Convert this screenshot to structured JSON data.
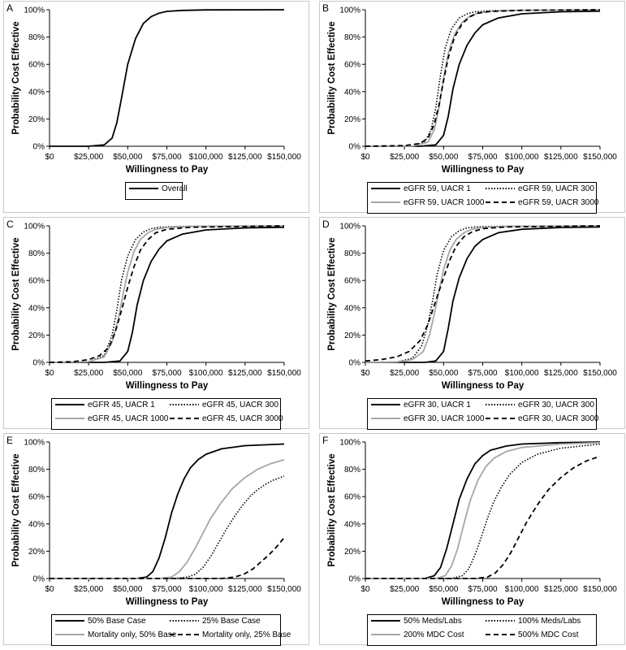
{
  "colors": {
    "black": "#000000",
    "gray": "#a6a6a6"
  },
  "chart_data": [
    {
      "panel": "A",
      "type": "line",
      "xlabel": "Willingness to Pay",
      "ylabel": "Probability Cost Effective",
      "xlim": [
        0,
        150000
      ],
      "ylim": [
        0,
        100
      ],
      "x_ticks": [
        "$0",
        "$25,000",
        "$50,000",
        "$75,000",
        "$100,000",
        "$125,000",
        "$150,000"
      ],
      "y_ticks": [
        "0%",
        "20%",
        "40%",
        "60%",
        "80%",
        "100%"
      ],
      "legend": [
        [
          "Overall"
        ]
      ],
      "series": [
        {
          "name": "Overall",
          "style": "solid",
          "color": "black",
          "x": [
            0,
            25000,
            35000,
            40000,
            43000,
            46000,
            50000,
            55000,
            60000,
            65000,
            70000,
            75000,
            85000,
            100000,
            150000
          ],
          "y": [
            0,
            0,
            1,
            6,
            17,
            35,
            60,
            79,
            90,
            95,
            97.5,
            98.8,
            99.5,
            99.9,
            100
          ]
        }
      ]
    },
    {
      "panel": "B",
      "type": "line",
      "xlabel": "Willingness to Pay",
      "ylabel": "Probability Cost Effective",
      "xlim": [
        0,
        150000
      ],
      "ylim": [
        0,
        100
      ],
      "x_ticks": [
        "$0",
        "$25,000",
        "$50,000",
        "$75,000",
        "$100,000",
        "$125,000",
        "$150,000"
      ],
      "y_ticks": [
        "0%",
        "20%",
        "40%",
        "60%",
        "80%",
        "100%"
      ],
      "legend": [
        [
          "eGFR 59, UACR 1",
          "eGFR 59, UACR 300"
        ],
        [
          "eGFR 59, UACR 1000",
          "eGFR 59, UACR 3000"
        ]
      ],
      "series": [
        {
          "name": "eGFR 59, UACR 1",
          "style": "solid",
          "color": "black",
          "x": [
            0,
            35000,
            45000,
            50000,
            53000,
            56000,
            60000,
            65000,
            70000,
            75000,
            85000,
            100000,
            125000,
            150000
          ],
          "y": [
            0,
            0,
            1,
            8,
            22,
            42,
            60,
            74,
            83,
            89,
            94,
            97,
            98.5,
            99
          ]
        },
        {
          "name": "eGFR 59, UACR 300",
          "style": "dotted",
          "color": "black",
          "x": [
            0,
            30000,
            38000,
            42000,
            45000,
            48000,
            51000,
            55000,
            60000,
            65000,
            70000,
            80000,
            100000,
            150000
          ],
          "y": [
            0,
            0,
            3,
            12,
            28,
            52,
            72,
            86,
            94,
            97,
            98.5,
            99.3,
            99.7,
            100
          ]
        },
        {
          "name": "eGFR 59, UACR 1000",
          "style": "solid",
          "color": "gray",
          "x": [
            0,
            30000,
            40000,
            44000,
            47000,
            50000,
            53000,
            57000,
            62000,
            67000,
            72000,
            80000,
            100000,
            150000
          ],
          "y": [
            0,
            0,
            3,
            12,
            28,
            50,
            68,
            82,
            91,
            95.5,
            97.5,
            98.8,
            99.5,
            100
          ]
        },
        {
          "name": "eGFR 59, UACR 3000",
          "style": "dashed",
          "color": "black",
          "x": [
            0,
            25000,
            35000,
            40000,
            44000,
            47000,
            50000,
            53000,
            57000,
            62000,
            67000,
            72000,
            80000,
            100000,
            150000
          ],
          "y": [
            0,
            0.5,
            2,
            6,
            16,
            30,
            48,
            65,
            80,
            90,
            95,
            97.5,
            98.8,
            99.6,
            100
          ]
        }
      ]
    },
    {
      "panel": "C",
      "type": "line",
      "xlabel": "Willingness to Pay",
      "ylabel": "Probability Cost Effective",
      "xlim": [
        0,
        150000
      ],
      "ylim": [
        0,
        100
      ],
      "x_ticks": [
        "$0",
        "$25,000",
        "$50,000",
        "$75,000",
        "$100,000",
        "$125,000",
        "$150,000"
      ],
      "y_ticks": [
        "0%",
        "20%",
        "40%",
        "60%",
        "80%",
        "100%"
      ],
      "legend": [
        [
          "eGFR 45, UACR 1",
          "eGFR 45, UACR 300"
        ],
        [
          "eGFR 45, UACR 1000",
          "eGFR 45, UACR 3000"
        ]
      ],
      "series": [
        {
          "name": "eGFR 45, UACR 1",
          "style": "solid",
          "color": "black",
          "x": [
            0,
            35000,
            45000,
            50000,
            53000,
            56000,
            60000,
            65000,
            70000,
            75000,
            85000,
            100000,
            125000,
            150000
          ],
          "y": [
            0,
            0,
            1,
            8,
            22,
            42,
            60,
            74,
            83,
            89,
            94,
            97,
            98.5,
            99
          ]
        },
        {
          "name": "eGFR 45, UACR 300",
          "style": "dotted",
          "color": "black",
          "x": [
            0,
            25000,
            35000,
            40000,
            43000,
            46000,
            50000,
            55000,
            60000,
            65000,
            70000,
            80000,
            100000,
            150000
          ],
          "y": [
            0,
            0.5,
            5,
            20,
            38,
            60,
            78,
            90,
            95.5,
            98,
            99,
            99.5,
            99.8,
            100
          ]
        },
        {
          "name": "eGFR 45, UACR 1000",
          "style": "solid",
          "color": "gray",
          "x": [
            0,
            25000,
            35000,
            40000,
            44000,
            47000,
            50000,
            54000,
            58000,
            63000,
            68000,
            75000,
            90000,
            150000
          ],
          "y": [
            0,
            0.5,
            4,
            15,
            32,
            50,
            66,
            81,
            90,
            95,
            97.5,
            98.8,
            99.5,
            100
          ]
        },
        {
          "name": "eGFR 45, UACR 3000",
          "style": "dashed",
          "color": "black",
          "x": [
            0,
            15000,
            25000,
            32000,
            38000,
            42000,
            46000,
            50000,
            54000,
            58000,
            63000,
            68000,
            75000,
            90000,
            150000
          ],
          "y": [
            0,
            0.5,
            2,
            5,
            11,
            22,
            38,
            55,
            70,
            82,
            90,
            95,
            97.5,
            99,
            100
          ]
        }
      ]
    },
    {
      "panel": "D",
      "type": "line",
      "xlabel": "Willingness to Pay",
      "ylabel": "Probability Cost Effective",
      "xlim": [
        0,
        150000
      ],
      "ylim": [
        0,
        100
      ],
      "x_ticks": [
        "$0",
        "$25,000",
        "$50,000",
        "$75,000",
        "$100,000",
        "$125,000",
        "$150,000"
      ],
      "y_ticks": [
        "0%",
        "20%",
        "40%",
        "60%",
        "80%",
        "100%"
      ],
      "legend": [
        [
          "eGFR 30, UACR 1",
          "eGFR 30, UACR 300"
        ],
        [
          "eGFR 30, UACR 1000",
          "eGFR 30, UACR 3000"
        ]
      ],
      "series": [
        {
          "name": "eGFR 30, UACR 1",
          "style": "solid",
          "color": "black",
          "x": [
            0,
            38000,
            45000,
            50000,
            53000,
            56000,
            60000,
            65000,
            70000,
            75000,
            85000,
            100000,
            125000,
            150000
          ],
          "y": [
            0,
            0,
            1,
            8,
            25,
            45,
            62,
            76,
            85,
            90,
            95,
            97.5,
            98.8,
            99.2
          ]
        },
        {
          "name": "eGFR 30, UACR 300",
          "style": "dotted",
          "color": "black",
          "x": [
            0,
            20000,
            30000,
            36000,
            40000,
            43000,
            46000,
            50000,
            55000,
            60000,
            65000,
            70000,
            80000,
            100000,
            150000
          ],
          "y": [
            0,
            0.3,
            3,
            12,
            28,
            45,
            65,
            82,
            92,
            96.5,
            98.5,
            99.2,
            99.6,
            99.8,
            100
          ]
        },
        {
          "name": "eGFR 30, UACR 1000",
          "style": "solid",
          "color": "gray",
          "x": [
            0,
            20000,
            30000,
            37000,
            41000,
            44000,
            47000,
            50000,
            54000,
            58000,
            63000,
            68000,
            75000,
            90000,
            150000
          ],
          "y": [
            0,
            0.3,
            2,
            8,
            20,
            35,
            52,
            68,
            82,
            90,
            95,
            97.5,
            98.8,
            99.5,
            100
          ]
        },
        {
          "name": "eGFR 30, UACR 3000",
          "style": "dashed",
          "color": "black",
          "x": [
            0,
            10000,
            20000,
            28000,
            35000,
            40000,
            45000,
            50000,
            54000,
            58000,
            63000,
            68000,
            75000,
            90000,
            150000
          ],
          "y": [
            1,
            2,
            4,
            8,
            16,
            28,
            45,
            62,
            75,
            85,
            92,
            95.5,
            98,
            99.2,
            100
          ]
        }
      ]
    },
    {
      "panel": "E",
      "type": "line",
      "xlabel": "Willingness to Pay",
      "ylabel": "Probability Cost Effective",
      "xlim": [
        0,
        150000
      ],
      "ylim": [
        0,
        100
      ],
      "x_ticks": [
        "$0",
        "$25,000",
        "$50,000",
        "$75,000",
        "$100,000",
        "$125,000",
        "$150,000"
      ],
      "y_ticks": [
        "0%",
        "20%",
        "40%",
        "60%",
        "80%",
        "100%"
      ],
      "legend": [
        [
          "50% Base Case",
          "25% Base Case"
        ],
        [
          "Mortality only, 50% Base",
          "Mortality only, 25% Base"
        ]
      ],
      "series": [
        {
          "name": "50% Base Case",
          "style": "solid",
          "color": "black",
          "x": [
            0,
            55000,
            62000,
            66000,
            70000,
            74000,
            78000,
            82000,
            86000,
            90000,
            95000,
            100000,
            110000,
            125000,
            150000
          ],
          "y": [
            0,
            0,
            1,
            5,
            15,
            30,
            48,
            62,
            73,
            81,
            87,
            91,
            95,
            97.3,
            98.5
          ]
        },
        {
          "name": "25% Base Case",
          "style": "dotted",
          "color": "black",
          "x": [
            0,
            80000,
            88000,
            93000,
            98000,
            103000,
            108000,
            113000,
            118000,
            123000,
            128000,
            133000,
            138000,
            143000,
            150000
          ],
          "y": [
            0,
            0,
            1,
            3,
            8,
            16,
            26,
            36,
            45,
            53,
            60,
            65,
            69,
            72,
            75
          ]
        },
        {
          "name": "Mortality only, 50% Base",
          "style": "solid",
          "color": "gray",
          "x": [
            0,
            70000,
            78000,
            83000,
            88000,
            93000,
            98000,
            103000,
            110000,
            117000,
            125000,
            133000,
            141000,
            150000
          ],
          "y": [
            0,
            0,
            1,
            5,
            12,
            22,
            33,
            44,
            56,
            66,
            74,
            80,
            84,
            87
          ]
        },
        {
          "name": "Mortality only, 25% Base",
          "style": "dashed",
          "color": "black",
          "x": [
            0,
            110000,
            118000,
            124000,
            130000,
            135000,
            140000,
            145000,
            150000
          ],
          "y": [
            0,
            0,
            1,
            3,
            7,
            12,
            17,
            23,
            30
          ]
        }
      ]
    },
    {
      "panel": "F",
      "type": "line",
      "xlabel": "Willingness to Pay",
      "ylabel": "Probability Cost Effective",
      "xlim": [
        0,
        150000
      ],
      "ylim": [
        0,
        100
      ],
      "x_ticks": [
        "$0",
        "$25,000",
        "$50,000",
        "$75,000",
        "$100,000",
        "$125,000",
        "$150,000"
      ],
      "y_ticks": [
        "0%",
        "20%",
        "40%",
        "60%",
        "80%",
        "100%"
      ],
      "legend": [
        [
          "50% Meds/Labs",
          "100% Meds/Labs"
        ],
        [
          "200% MDC Cost",
          "500% MDC Cost"
        ]
      ],
      "series": [
        {
          "name": "50% Meds/Labs",
          "style": "solid",
          "color": "black",
          "x": [
            0,
            38000,
            44000,
            48000,
            52000,
            56000,
            60000,
            65000,
            70000,
            75000,
            80000,
            90000,
            100000,
            125000,
            150000
          ],
          "y": [
            0,
            0,
            2,
            8,
            22,
            40,
            58,
            73,
            84,
            90,
            94,
            97,
            98.5,
            99.5,
            100
          ]
        },
        {
          "name": "100% Meds/Labs",
          "style": "dotted",
          "color": "black",
          "x": [
            0,
            55000,
            62000,
            66000,
            70000,
            74000,
            78000,
            82000,
            87000,
            92000,
            100000,
            110000,
            125000,
            150000
          ],
          "y": [
            0,
            0,
            2,
            7,
            17,
            30,
            44,
            56,
            67,
            76,
            85,
            91,
            95.5,
            98.5
          ]
        },
        {
          "name": "200% MDC Cost",
          "style": "solid",
          "color": "gray",
          "x": [
            0,
            45000,
            51000,
            55000,
            59000,
            63000,
            67000,
            72000,
            77000,
            82000,
            90000,
            100000,
            125000,
            150000
          ],
          "y": [
            0,
            0,
            2,
            9,
            22,
            40,
            57,
            72,
            82,
            88,
            93,
            96,
            98.5,
            99.5
          ]
        },
        {
          "name": "500% MDC Cost",
          "style": "dashed",
          "color": "black",
          "x": [
            0,
            70000,
            78000,
            83000,
            88000,
            93000,
            98000,
            103000,
            110000,
            117000,
            125000,
            133000,
            141000,
            150000
          ],
          "y": [
            0,
            0,
            1,
            4,
            10,
            19,
            30,
            41,
            54,
            65,
            74,
            81,
            86,
            89.5
          ]
        }
      ]
    }
  ]
}
